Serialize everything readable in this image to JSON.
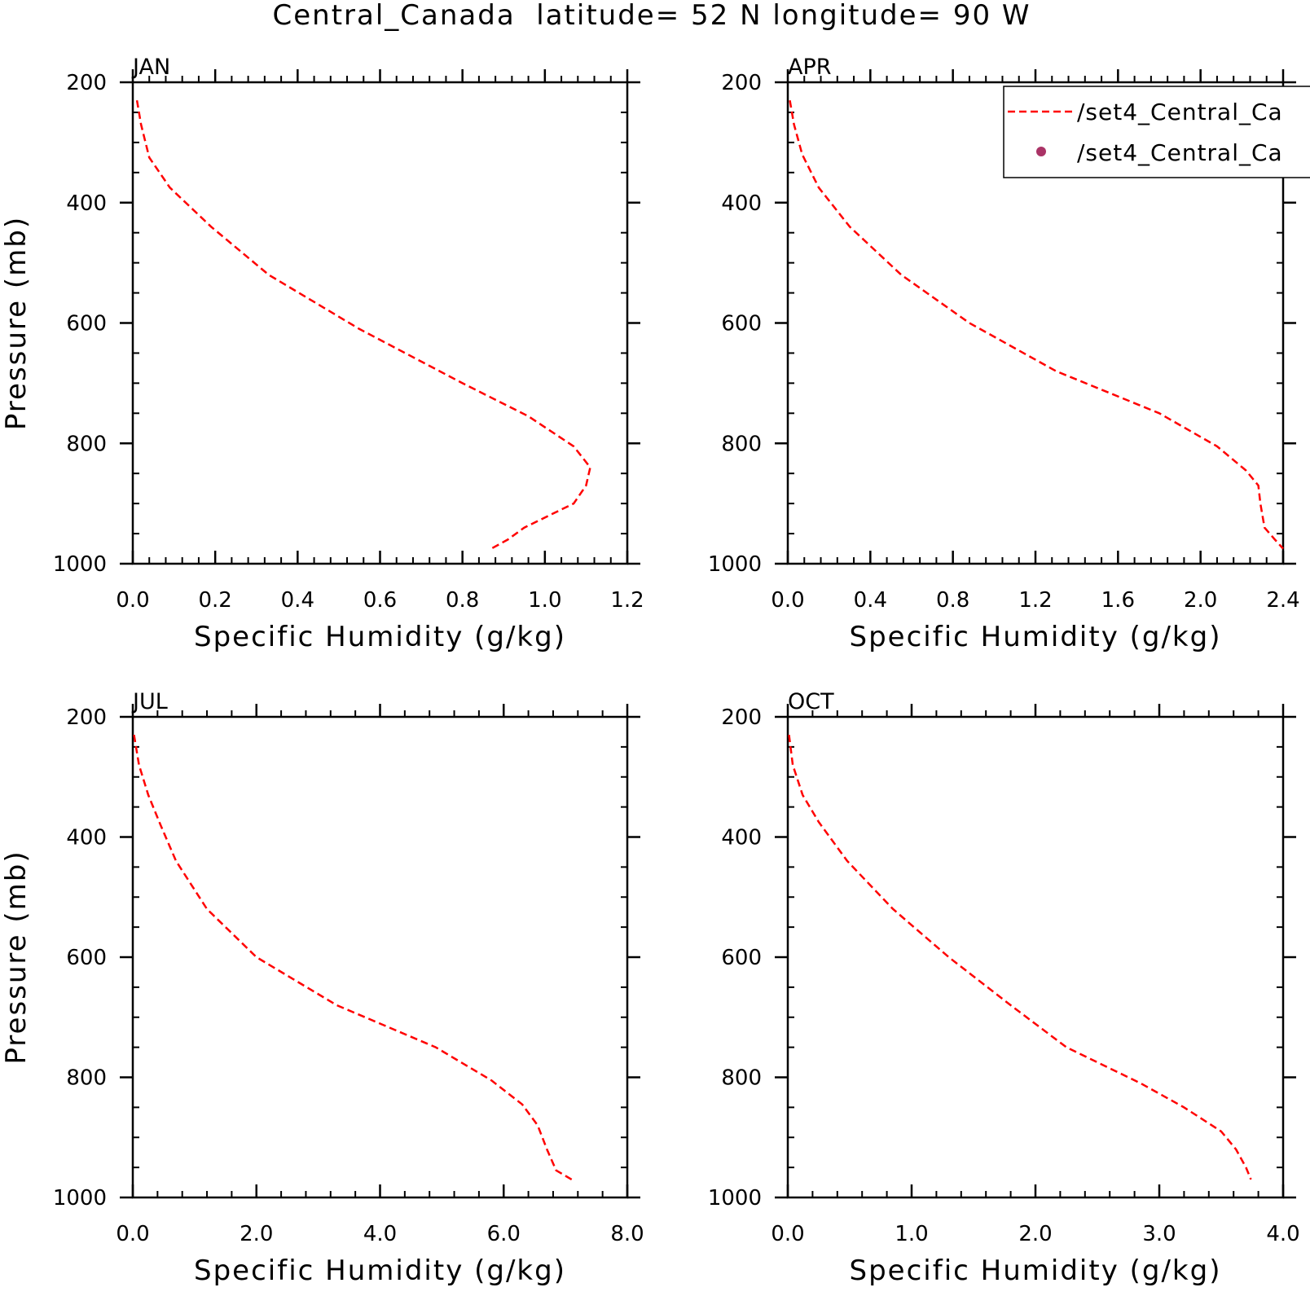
{
  "figure_title": "Central_Canada  latitude= 52 N longitude= 90 W",
  "legend": {
    "items": [
      {
        "label": "/set4_Central_Ca",
        "marker": "dashed-line",
        "color": "#ff0000"
      },
      {
        "label": "/set4_Central_Ca",
        "marker": "dot",
        "color": "#aa3366"
      }
    ]
  },
  "chart_data": [
    {
      "type": "line",
      "title": "JAN",
      "xlabel": "Specific Humidity (g/kg)",
      "ylabel": "Pressure (mb)",
      "xlim": [
        0,
        1.2
      ],
      "ylim": [
        1000,
        200
      ],
      "xticks": [
        "0.0",
        "0.2",
        "0.4",
        "0.6",
        "0.8",
        "1.0",
        "1.2"
      ],
      "yticks": [
        "200",
        "400",
        "600",
        "800",
        "1000"
      ],
      "series": [
        {
          "color": "#ff0000",
          "style": "dashed",
          "x": [
            0.01,
            0.02,
            0.04,
            0.09,
            0.19,
            0.33,
            0.55,
            0.8,
            0.96,
            1.07,
            1.11,
            1.1,
            1.07,
            0.95,
            0.91,
            0.87
          ],
          "y": [
            230,
            270,
            325,
            375,
            440,
            520,
            610,
            700,
            755,
            805,
            840,
            870,
            900,
            940,
            960,
            975
          ]
        }
      ]
    },
    {
      "type": "line",
      "title": "APR",
      "xlabel": "Specific Humidity (g/kg)",
      "ylabel": "",
      "xlim": [
        0,
        2.4
      ],
      "ylim": [
        1000,
        200
      ],
      "xticks": [
        "0.0",
        "0.4",
        "0.8",
        "1.2",
        "1.6",
        "2.0",
        "2.4"
      ],
      "yticks": [
        "200",
        "400",
        "600",
        "800",
        "1000"
      ],
      "series": [
        {
          "color": "#ff0000",
          "style": "dashed",
          "x": [
            0.01,
            0.03,
            0.07,
            0.15,
            0.3,
            0.55,
            0.88,
            1.3,
            1.8,
            2.08,
            2.22,
            2.28,
            2.29,
            2.31,
            2.36,
            2.4
          ],
          "y": [
            230,
            270,
            320,
            375,
            440,
            520,
            600,
            680,
            750,
            805,
            845,
            870,
            900,
            940,
            960,
            975
          ]
        }
      ]
    },
    {
      "type": "line",
      "title": "JUL",
      "xlabel": "Specific Humidity (g/kg)",
      "ylabel": "Pressure (mb)",
      "xlim": [
        0,
        8.0
      ],
      "ylim": [
        1000,
        200
      ],
      "xticks": [
        "0.0",
        "2.0",
        "4.0",
        "6.0",
        "8.0"
      ],
      "yticks": [
        "200",
        "400",
        "600",
        "800",
        "1000"
      ],
      "series": [
        {
          "color": "#ff0000",
          "style": "dashed",
          "x": [
            0.02,
            0.1,
            0.25,
            0.45,
            0.7,
            1.2,
            2.0,
            3.3,
            4.9,
            5.8,
            6.3,
            6.55,
            6.7,
            6.85,
            7.1
          ],
          "y": [
            230,
            280,
            330,
            380,
            440,
            520,
            600,
            680,
            750,
            805,
            845,
            880,
            920,
            955,
            970
          ]
        }
      ]
    },
    {
      "type": "line",
      "title": "OCT",
      "xlabel": "Specific Humidity (g/kg)",
      "ylabel": "",
      "xlim": [
        0,
        4.0
      ],
      "ylim": [
        1000,
        200
      ],
      "xticks": [
        "0.0",
        "1.0",
        "2.0",
        "3.0",
        "4.0"
      ],
      "yticks": [
        "200",
        "400",
        "600",
        "800",
        "1000"
      ],
      "series": [
        {
          "color": "#ff0000",
          "style": "dashed",
          "x": [
            0.01,
            0.04,
            0.12,
            0.25,
            0.48,
            0.85,
            1.3,
            1.8,
            2.25,
            2.85,
            3.2,
            3.5,
            3.62,
            3.7,
            3.74
          ],
          "y": [
            230,
            280,
            330,
            375,
            440,
            520,
            600,
            680,
            750,
            810,
            850,
            890,
            920,
            950,
            970
          ]
        }
      ]
    }
  ]
}
